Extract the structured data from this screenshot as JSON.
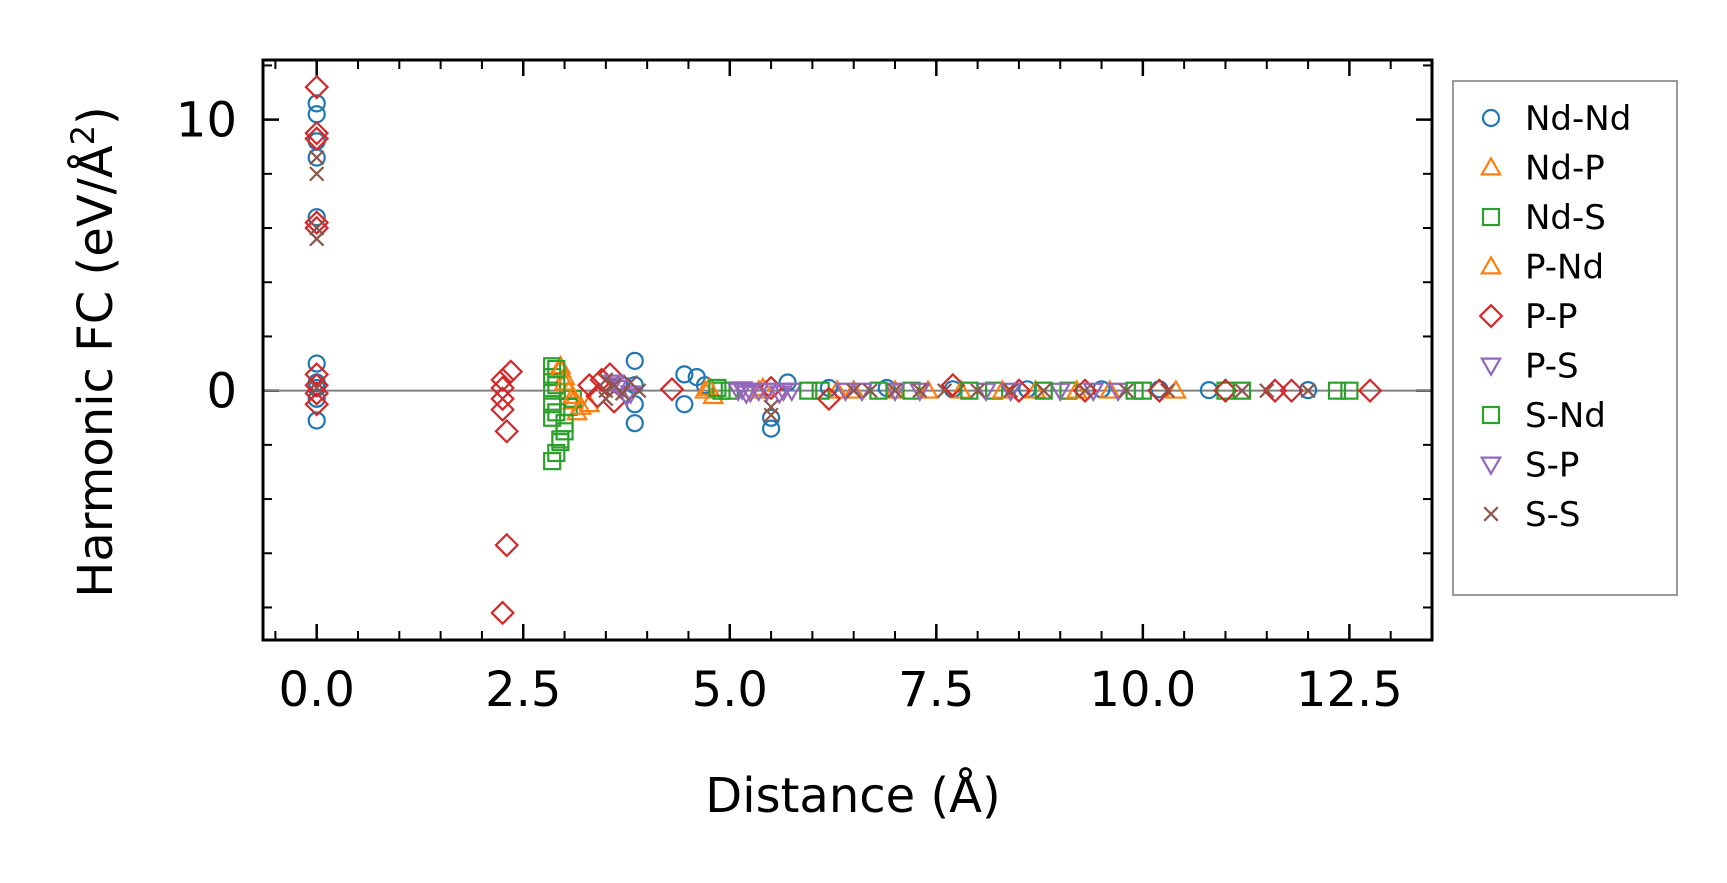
{
  "chart_data": {
    "type": "scatter",
    "xlabel": "Distance (Å)",
    "ylabel_main": "Harmonic FC (eV/Å",
    "ylabel_sup": "2",
    "ylabel_close": ")",
    "xlim": [
      -0.65,
      13.5
    ],
    "ylim": [
      -9.2,
      12.2
    ],
    "xticks": [
      0.0,
      2.5,
      5.0,
      7.5,
      10.0,
      12.5
    ],
    "xtick_labels": [
      "0.0",
      "2.5",
      "5.0",
      "7.5",
      "10.0",
      "12.5"
    ],
    "yticks": [
      0,
      10
    ],
    "ytick_labels": [
      "0",
      "10"
    ],
    "x_minor_step": 0.5,
    "y_minor_step": 2,
    "zero_line": true,
    "legend_position": "right, outside plot",
    "series": [
      {
        "name": "Nd-Nd",
        "marker": "circle",
        "color": "#1f77b4",
        "points": [
          [
            0,
            10.6
          ],
          [
            0,
            10.2
          ],
          [
            0,
            9.2
          ],
          [
            0,
            8.6
          ],
          [
            0,
            6.4
          ],
          [
            0,
            1.0
          ],
          [
            0,
            0.3
          ],
          [
            0,
            0.1
          ],
          [
            0,
            -0.3
          ],
          [
            0,
            -1.1
          ],
          [
            3.85,
            1.1
          ],
          [
            3.85,
            0.2
          ],
          [
            3.85,
            -0.5
          ],
          [
            3.85,
            -1.2
          ],
          [
            4.45,
            0.6
          ],
          [
            4.45,
            -0.5
          ],
          [
            4.6,
            0.5
          ],
          [
            4.7,
            0.2
          ],
          [
            5.5,
            -1.0
          ],
          [
            5.5,
            -1.4
          ],
          [
            5.7,
            0.3
          ],
          [
            6.2,
            0.1
          ],
          [
            6.9,
            0.1
          ],
          [
            7.7,
            0.05
          ],
          [
            8.6,
            0.05
          ],
          [
            9.5,
            0.05
          ],
          [
            10.2,
            0.05
          ],
          [
            10.8,
            0.02
          ],
          [
            12.0,
            0.02
          ]
        ]
      },
      {
        "name": "Nd-P",
        "marker": "triangle-up",
        "color": "#ff7f0e",
        "points": [
          [
            2.95,
            0.9
          ],
          [
            3.0,
            0.5
          ],
          [
            3.05,
            0.0
          ],
          [
            3.1,
            -0.4
          ],
          [
            3.15,
            -0.8
          ],
          [
            3.3,
            -0.5
          ],
          [
            4.7,
            0.0
          ],
          [
            4.8,
            -0.2
          ],
          [
            5.4,
            0.1
          ],
          [
            6.3,
            0.0
          ],
          [
            7.0,
            0.0
          ],
          [
            7.8,
            0.0
          ],
          [
            8.7,
            0.0
          ],
          [
            9.6,
            0.0
          ],
          [
            10.4,
            0.0
          ]
        ]
      },
      {
        "name": "Nd-S",
        "marker": "square",
        "color": "#2ca02c",
        "points": [
          [
            2.85,
            0.9
          ],
          [
            2.85,
            0.5
          ],
          [
            2.85,
            0.0
          ],
          [
            2.85,
            -0.5
          ],
          [
            2.85,
            -1.0
          ],
          [
            2.85,
            -2.6
          ],
          [
            2.9,
            -2.3
          ],
          [
            2.95,
            -1.9
          ],
          [
            3.0,
            -1.5
          ],
          [
            3.05,
            -0.6
          ],
          [
            3.1,
            -0.3
          ],
          [
            4.9,
            0.0
          ],
          [
            5.0,
            0.0
          ],
          [
            6.1,
            0.0
          ],
          [
            7.2,
            0.0
          ],
          [
            8.2,
            0.0
          ],
          [
            9.1,
            0.0
          ],
          [
            10.0,
            0.0
          ],
          [
            11.0,
            0.0
          ],
          [
            12.35,
            0.0
          ],
          [
            12.5,
            0.0
          ]
        ]
      },
      {
        "name": "P-Nd",
        "marker": "triangle-up",
        "color": "#ff7f0e",
        "points": [
          [
            2.95,
            0.8
          ],
          [
            3.0,
            0.3
          ],
          [
            3.1,
            -0.2
          ],
          [
            3.2,
            -0.6
          ],
          [
            4.75,
            0.1
          ],
          [
            5.35,
            0.0
          ],
          [
            6.5,
            0.0
          ],
          [
            7.4,
            0.0
          ],
          [
            8.3,
            0.0
          ],
          [
            9.2,
            0.0
          ]
        ]
      },
      {
        "name": "P-P",
        "marker": "diamond",
        "color": "#d62728",
        "points": [
          [
            0,
            11.2
          ],
          [
            0,
            9.5
          ],
          [
            0,
            9.3
          ],
          [
            0,
            6.2
          ],
          [
            0,
            6.0
          ],
          [
            0,
            0.6
          ],
          [
            0,
            0.2
          ],
          [
            0,
            -0.1
          ],
          [
            0,
            -0.5
          ],
          [
            2.25,
            0.4
          ],
          [
            2.25,
            0.1
          ],
          [
            2.25,
            -0.3
          ],
          [
            2.25,
            -0.7
          ],
          [
            2.3,
            -1.5
          ],
          [
            2.3,
            -5.7
          ],
          [
            2.25,
            -8.2
          ],
          [
            2.35,
            0.7
          ],
          [
            3.3,
            0.2
          ],
          [
            3.4,
            -0.2
          ],
          [
            3.45,
            0.4
          ],
          [
            3.55,
            0.6
          ],
          [
            3.6,
            -0.4
          ],
          [
            4.3,
            0.05
          ],
          [
            5.5,
            0.1
          ],
          [
            6.2,
            -0.3
          ],
          [
            7.7,
            0.2
          ],
          [
            8.5,
            0.0
          ],
          [
            9.3,
            0.0
          ],
          [
            10.2,
            0.0
          ],
          [
            11.0,
            0.0
          ],
          [
            11.6,
            0.0
          ],
          [
            11.8,
            0.0
          ],
          [
            12.75,
            0.0
          ]
        ]
      },
      {
        "name": "P-S",
        "marker": "triangle-down",
        "color": "#9467bd",
        "points": [
          [
            3.6,
            0.3
          ],
          [
            3.7,
            0.1
          ],
          [
            3.8,
            -0.1
          ],
          [
            5.1,
            0.0
          ],
          [
            5.2,
            -0.1
          ],
          [
            5.35,
            0.0
          ],
          [
            5.6,
            -0.1
          ],
          [
            5.75,
            0.0
          ],
          [
            6.4,
            0.0
          ],
          [
            7.0,
            0.0
          ],
          [
            8.1,
            0.0
          ],
          [
            9.0,
            0.0
          ],
          [
            9.7,
            0.0
          ]
        ]
      },
      {
        "name": "S-Nd",
        "marker": "square",
        "color": "#2ca02c",
        "points": [
          [
            2.9,
            0.8
          ],
          [
            2.9,
            0.2
          ],
          [
            2.9,
            -0.8
          ],
          [
            2.95,
            -1.8
          ],
          [
            3.0,
            -1.2
          ],
          [
            4.85,
            0.1
          ],
          [
            5.95,
            0.0
          ],
          [
            6.8,
            0.0
          ],
          [
            7.9,
            0.0
          ],
          [
            8.8,
            0.0
          ],
          [
            9.9,
            0.0
          ],
          [
            11.2,
            0.0
          ]
        ]
      },
      {
        "name": "S-P",
        "marker": "triangle-down",
        "color": "#9467bd",
        "points": [
          [
            3.65,
            0.2
          ],
          [
            3.75,
            -0.2
          ],
          [
            5.15,
            0.05
          ],
          [
            5.25,
            -0.05
          ],
          [
            5.45,
            0.0
          ],
          [
            5.65,
            0.0
          ],
          [
            6.6,
            0.0
          ],
          [
            7.3,
            0.0
          ],
          [
            8.4,
            0.0
          ],
          [
            9.4,
            0.0
          ]
        ]
      },
      {
        "name": "S-S",
        "marker": "x",
        "color": "#8c564b",
        "points": [
          [
            0,
            8.6
          ],
          [
            0,
            8.0
          ],
          [
            0,
            6.0
          ],
          [
            0,
            5.6
          ],
          [
            0,
            0.1
          ],
          [
            3.5,
            0.4
          ],
          [
            3.5,
            0.0
          ],
          [
            3.5,
            -0.3
          ],
          [
            3.6,
            0.2
          ],
          [
            3.7,
            -0.1
          ],
          [
            3.8,
            0.3
          ],
          [
            3.9,
            0.0
          ],
          [
            5.5,
            -0.6
          ],
          [
            5.5,
            -0.9
          ],
          [
            6.5,
            0.0
          ],
          [
            6.7,
            0.0
          ],
          [
            7.0,
            0.0
          ],
          [
            7.3,
            0.0
          ],
          [
            7.6,
            0.0
          ],
          [
            8.0,
            0.0
          ],
          [
            8.4,
            0.0
          ],
          [
            8.8,
            0.0
          ],
          [
            9.3,
            0.0
          ],
          [
            9.8,
            0.0
          ],
          [
            10.3,
            0.0
          ],
          [
            11.2,
            0.0
          ],
          [
            11.5,
            0.0
          ],
          [
            12.0,
            0.0
          ]
        ]
      }
    ]
  }
}
